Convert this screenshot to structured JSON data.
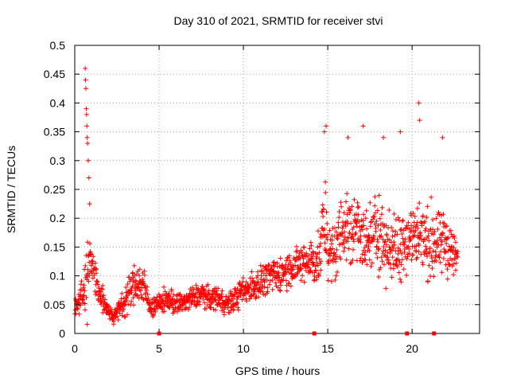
{
  "chart_data": {
    "type": "scatter",
    "title": "Day 310 of 2021, SRMTID for receiver stvi",
    "xlabel": "GPS time / hours",
    "ylabel": "SRMTID / TECUs",
    "xlim": [
      0,
      24
    ],
    "ylim": [
      0,
      0.5
    ],
    "grid": true,
    "marker": "+",
    "color": "#ff0000",
    "xticks": [
      "0",
      "5",
      "10",
      "15",
      "20"
    ],
    "yticks": [
      "0",
      "0.05",
      "0.1",
      "0.15",
      "0.2",
      "0.25",
      "0.3",
      "0.35",
      "0.4",
      "0.45",
      "0.5"
    ],
    "envelope": {
      "x": [
        0.0,
        0.2,
        0.4,
        0.55,
        0.7,
        0.8,
        0.9,
        1.0,
        1.3,
        1.6,
        2.0,
        2.3,
        2.6,
        3.0,
        3.4,
        3.8,
        4.1,
        4.3,
        4.6,
        4.9,
        5.2,
        5.6,
        6.0,
        6.5,
        7.0,
        7.5,
        8.0,
        8.5,
        9.0,
        9.5,
        10.0,
        10.5,
        11.0,
        11.5,
        12.0,
        12.5,
        13.0,
        13.5,
        14.0,
        14.4,
        14.8,
        15.2,
        15.6,
        16.0,
        16.4,
        16.8,
        17.2,
        17.6,
        18.0,
        18.4,
        18.8,
        19.2,
        19.6,
        20.0,
        20.4,
        20.8,
        21.2,
        21.6,
        22.0,
        22.4,
        22.7
      ],
      "mean": [
        0.04,
        0.055,
        0.065,
        0.07,
        0.09,
        0.12,
        0.13,
        0.13,
        0.08,
        0.06,
        0.04,
        0.03,
        0.04,
        0.06,
        0.08,
        0.09,
        0.08,
        0.06,
        0.045,
        0.05,
        0.055,
        0.06,
        0.05,
        0.055,
        0.06,
        0.07,
        0.06,
        0.065,
        0.05,
        0.06,
        0.075,
        0.08,
        0.09,
        0.1,
        0.1,
        0.11,
        0.115,
        0.12,
        0.13,
        0.12,
        0.19,
        0.13,
        0.16,
        0.19,
        0.17,
        0.2,
        0.15,
        0.17,
        0.18,
        0.16,
        0.14,
        0.15,
        0.17,
        0.16,
        0.18,
        0.15,
        0.16,
        0.15,
        0.16,
        0.14,
        0.13
      ],
      "spread": [
        0.02,
        0.025,
        0.03,
        0.04,
        0.1,
        0.06,
        0.05,
        0.04,
        0.03,
        0.025,
        0.015,
        0.015,
        0.02,
        0.03,
        0.04,
        0.04,
        0.035,
        0.025,
        0.02,
        0.02,
        0.02,
        0.025,
        0.02,
        0.02,
        0.025,
        0.025,
        0.02,
        0.025,
        0.02,
        0.025,
        0.025,
        0.03,
        0.03,
        0.03,
        0.03,
        0.035,
        0.035,
        0.04,
        0.04,
        0.05,
        0.08,
        0.05,
        0.07,
        0.07,
        0.07,
        0.08,
        0.06,
        0.07,
        0.08,
        0.07,
        0.06,
        0.07,
        0.07,
        0.07,
        0.09,
        0.06,
        0.08,
        0.06,
        0.07,
        0.05,
        0.04
      ]
    },
    "spikes": [
      {
        "x": 0.62,
        "y": 0.46
      },
      {
        "x": 0.64,
        "y": 0.44
      },
      {
        "x": 0.66,
        "y": 0.425
      },
      {
        "x": 0.68,
        "y": 0.39
      },
      {
        "x": 0.7,
        "y": 0.38
      },
      {
        "x": 0.72,
        "y": 0.36
      },
      {
        "x": 0.74,
        "y": 0.34
      },
      {
        "x": 0.76,
        "y": 0.33
      },
      {
        "x": 0.8,
        "y": 0.3
      },
      {
        "x": 0.84,
        "y": 0.27
      },
      {
        "x": 0.88,
        "y": 0.225
      },
      {
        "x": 14.9,
        "y": 0.36
      },
      {
        "x": 14.8,
        "y": 0.35
      },
      {
        "x": 20.4,
        "y": 0.4
      },
      {
        "x": 20.45,
        "y": 0.37
      },
      {
        "x": 17.1,
        "y": 0.36
      },
      {
        "x": 19.3,
        "y": 0.35
      },
      {
        "x": 21.8,
        "y": 0.34
      },
      {
        "x": 16.2,
        "y": 0.34
      },
      {
        "x": 18.3,
        "y": 0.34
      }
    ],
    "baseline_markers": [
      5.0,
      14.2,
      19.7,
      21.3
    ]
  }
}
